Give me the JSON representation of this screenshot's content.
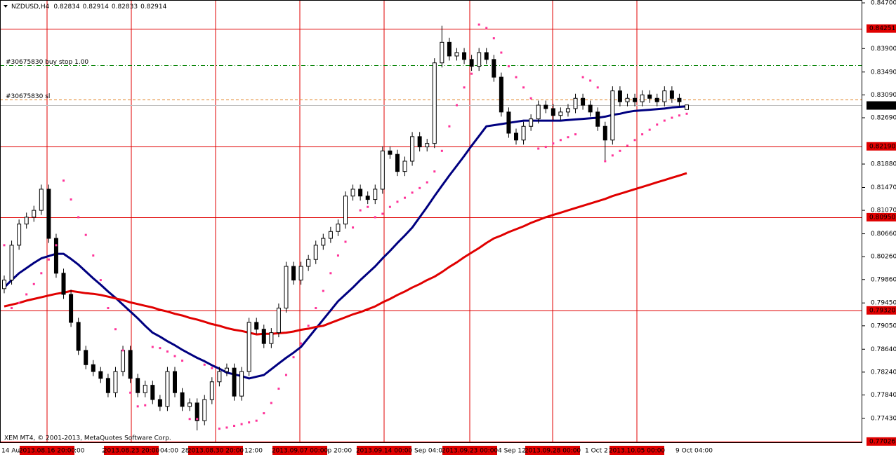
{
  "chart_data": {
    "type": "candlestick",
    "symbol": "NZDUSD,H4",
    "quote": [
      0.82834,
      0.82914,
      0.82833,
      0.82914
    ],
    "footer": "XEM MT4, © 2001-2013, MetaQuotes Software Corp.",
    "ylim": [
      0.77,
      0.8475
    ],
    "yticks": [
      {
        "value": 0.847,
        "label": "0.84700"
      },
      {
        "value": 0.839,
        "label": "0.83900"
      },
      {
        "value": 0.8349,
        "label": "0.83490"
      },
      {
        "value": 0.8309,
        "label": "0.83090"
      },
      {
        "value": 0.8269,
        "label": "0.82690"
      },
      {
        "value": 0.8188,
        "label": "0.81880"
      },
      {
        "value": 0.8147,
        "label": "0.81470"
      },
      {
        "value": 0.8107,
        "label": "0.81070"
      },
      {
        "value": 0.8066,
        "label": "0.80660"
      },
      {
        "value": 0.8026,
        "label": "0.80260"
      },
      {
        "value": 0.7986,
        "label": "0.79860"
      },
      {
        "value": 0.7945,
        "label": "0.79450"
      },
      {
        "value": 0.7905,
        "label": "0.79050"
      },
      {
        "value": 0.7864,
        "label": "0.78640"
      },
      {
        "value": 0.7824,
        "label": "0.78240"
      },
      {
        "value": 0.7784,
        "label": "0.77840"
      },
      {
        "value": 0.7743,
        "label": "0.77430"
      }
    ],
    "levels": [
      0.84251,
      {
        "value": 0.8219,
        "label": "0.82190"
      },
      {
        "value": 0.8095,
        "label": "0.80950"
      },
      {
        "value": 0.7932,
        "label": "0.79320"
      },
      0.77026
    ],
    "level_color": "#e00000",
    "current_price": 0.82914,
    "orders": [
      {
        "label": "#30675830 buy stop 1.00",
        "value": 0.8361,
        "color": "#008000"
      },
      {
        "label": "#30675830 sl",
        "value": 0.8301,
        "color": "#e08020"
      }
    ],
    "separators": [
      "2013.08.16 20:00",
      "2013.08.23 20:00",
      "2013.08.30 20:00",
      "2013.09.07 00:00",
      "2013.09.14 00:00",
      "2013.09.23 00:00",
      "2013.09.28 00:00",
      "2013.10.05 00:00"
    ],
    "time_labels": [
      "14 Au",
      ":00",
      "21 A",
      "04:00",
      "28",
      "12:00",
      "ep 20:00",
      "Sep 04:00",
      "4 Sep 12",
      "1 Oct 2",
      "9 Oct 04:00"
    ],
    "open": [
      0.797,
      0.7985,
      0.8046,
      0.8083,
      0.8095,
      0.8107,
      0.8144,
      0.8058,
      0.7997,
      0.796,
      0.7911,
      0.7862,
      0.7837,
      0.7825,
      0.7813,
      0.7788,
      0.7825,
      0.7862,
      0.7813,
      0.7788,
      0.7801,
      0.7776,
      0.7764,
      0.7825,
      0.7788,
      0.7764,
      0.777,
      0.7739,
      0.7776,
      0.7807,
      0.7825,
      0.7831,
      0.7782,
      0.7825,
      0.7911,
      0.7899,
      0.7874,
      0.7893,
      0.7936,
      0.8009,
      0.7985,
      0.8009,
      0.8021,
      0.8046,
      0.8058,
      0.807,
      0.8083,
      0.8132,
      0.8144,
      0.8132,
      0.8126,
      0.8144,
      0.8211,
      0.8205,
      0.8175,
      0.8193,
      0.8236,
      0.8218,
      0.8224,
      0.8365,
      0.8401,
      0.8377,
      0.8383,
      0.8371,
      0.8359,
      0.8383,
      0.8371,
      0.834,
      0.8279,
      0.8242,
      0.823,
      0.8254,
      0.8267,
      0.8291,
      0.8285,
      0.8273,
      0.8279,
      0.8285,
      0.8303,
      0.8291,
      0.8279,
      0.8254,
      0.823,
      0.8316,
      0.8297,
      0.8303,
      0.8297,
      0.8309,
      0.8303,
      0.8297,
      0.8316,
      0.8303,
      0.82834
    ],
    "high": [
      0.7993,
      0.8054,
      0.8091,
      0.8103,
      0.8115,
      0.8152,
      0.8152,
      0.8066,
      0.8005,
      0.7968,
      0.7919,
      0.787,
      0.7845,
      0.7833,
      0.7821,
      0.7833,
      0.787,
      0.787,
      0.7821,
      0.7809,
      0.7809,
      0.7784,
      0.7833,
      0.7833,
      0.7796,
      0.7778,
      0.7778,
      0.7784,
      0.7815,
      0.7833,
      0.7839,
      0.7839,
      0.7833,
      0.7919,
      0.7919,
      0.7907,
      0.7901,
      0.7944,
      0.8017,
      0.8017,
      0.8017,
      0.8029,
      0.8054,
      0.8066,
      0.8078,
      0.8091,
      0.814,
      0.8152,
      0.8152,
      0.814,
      0.8152,
      0.8219,
      0.8219,
      0.8213,
      0.8201,
      0.8244,
      0.8244,
      0.8232,
      0.8373,
      0.843,
      0.8409,
      0.8391,
      0.8391,
      0.8379,
      0.8391,
      0.8391,
      0.8379,
      0.8348,
      0.8287,
      0.825,
      0.8262,
      0.8275,
      0.8299,
      0.8299,
      0.8293,
      0.8287,
      0.8293,
      0.8311,
      0.8311,
      0.8299,
      0.8287,
      0.8262,
      0.8324,
      0.8324,
      0.8311,
      0.8311,
      0.8317,
      0.8317,
      0.8311,
      0.8324,
      0.8324,
      0.8311,
      0.82914
    ],
    "low": [
      0.7962,
      0.7977,
      0.8038,
      0.8075,
      0.8087,
      0.8099,
      0.805,
      0.7989,
      0.7952,
      0.7903,
      0.7854,
      0.7829,
      0.7817,
      0.7805,
      0.778,
      0.778,
      0.7817,
      0.7805,
      0.778,
      0.778,
      0.7768,
      0.7756,
      0.7756,
      0.778,
      0.7756,
      0.7756,
      0.7722,
      0.7731,
      0.7768,
      0.7799,
      0.7817,
      0.7774,
      0.7774,
      0.7817,
      0.7891,
      0.7866,
      0.7866,
      0.7885,
      0.7928,
      0.7977,
      0.7977,
      0.8001,
      0.8013,
      0.8038,
      0.805,
      0.8062,
      0.8075,
      0.8124,
      0.8124,
      0.8118,
      0.8118,
      0.8136,
      0.8197,
      0.8167,
      0.8167,
      0.8185,
      0.821,
      0.821,
      0.8216,
      0.8357,
      0.8369,
      0.8369,
      0.8363,
      0.8351,
      0.8351,
      0.8363,
      0.8332,
      0.8271,
      0.8234,
      0.8222,
      0.8222,
      0.8246,
      0.8259,
      0.8277,
      0.8265,
      0.8265,
      0.8271,
      0.8277,
      0.8283,
      0.8271,
      0.8246,
      0.8195,
      0.8222,
      0.8289,
      0.8289,
      0.8289,
      0.8289,
      0.8295,
      0.8289,
      0.8289,
      0.8295,
      0.8289,
      0.82833
    ],
    "close": [
      0.7985,
      0.8046,
      0.8083,
      0.8095,
      0.8107,
      0.8144,
      0.8058,
      0.7997,
      0.796,
      0.7911,
      0.7862,
      0.7837,
      0.7825,
      0.7813,
      0.7788,
      0.7825,
      0.7862,
      0.7813,
      0.7788,
      0.7801,
      0.7776,
      0.7764,
      0.7825,
      0.7788,
      0.7764,
      0.777,
      0.7739,
      0.7776,
      0.7807,
      0.7825,
      0.7831,
      0.7782,
      0.7825,
      0.7911,
      0.7899,
      0.7874,
      0.7893,
      0.7936,
      0.8009,
      0.7985,
      0.8009,
      0.8021,
      0.8046,
      0.8058,
      0.807,
      0.8083,
      0.8132,
      0.8144,
      0.8132,
      0.8126,
      0.8144,
      0.8211,
      0.8205,
      0.8175,
      0.8193,
      0.8236,
      0.8218,
      0.8224,
      0.8365,
      0.8401,
      0.8377,
      0.8383,
      0.8371,
      0.8359,
      0.8383,
      0.8371,
      0.834,
      0.8279,
      0.8242,
      0.823,
      0.8254,
      0.8267,
      0.8291,
      0.8285,
      0.8273,
      0.8279,
      0.8285,
      0.8303,
      0.8291,
      0.8279,
      0.8254,
      0.823,
      0.8316,
      0.8297,
      0.8303,
      0.8297,
      0.8309,
      0.8303,
      0.8297,
      0.8316,
      0.8303,
      0.8297,
      0.82914
    ],
    "ma": [
      {
        "color": "#000080",
        "values": [
          0.7972,
          0.7985,
          0.7997,
          0.8006,
          0.8015,
          0.8023,
          0.8027,
          0.8031,
          0.8031,
          0.8022,
          0.8012,
          0.8,
          0.7988,
          0.7977,
          0.7965,
          0.7954,
          0.7942,
          0.793,
          0.7918,
          0.7905,
          0.7893,
          0.7886,
          0.7878,
          0.7871,
          0.7863,
          0.7856,
          0.7849,
          0.7843,
          0.7836,
          0.783,
          0.7823,
          0.782,
          0.7817,
          0.7813,
          0.7816,
          0.7819,
          0.7829,
          0.7839,
          0.7849,
          0.7858,
          0.7868,
          0.7884,
          0.79,
          0.7916,
          0.7932,
          0.7948,
          0.796,
          0.7972,
          0.7985,
          0.7997,
          0.8009,
          0.8023,
          0.8036,
          0.805,
          0.8063,
          0.8077,
          0.8095,
          0.8113,
          0.8132,
          0.815,
          0.8168,
          0.8185,
          0.8202,
          0.822,
          0.8237,
          0.8254,
          0.8256,
          0.8258,
          0.826,
          0.8262,
          0.8264,
          0.8264,
          0.8264,
          0.8264,
          0.8264,
          0.8264,
          0.8265,
          0.8266,
          0.8267,
          0.8268,
          0.8269,
          0.8271,
          0.8274,
          0.8276,
          0.8279,
          0.8281,
          0.8282,
          0.8283,
          0.8284,
          0.8285,
          0.8287,
          0.8288,
          0.8289
        ]
      },
      {
        "color": "#e00000",
        "values": [
          0.7939,
          0.7942,
          0.7945,
          0.7949,
          0.7952,
          0.7955,
          0.7958,
          0.7961,
          0.7963,
          0.7966,
          0.7964,
          0.7962,
          0.7961,
          0.7959,
          0.7956,
          0.7953,
          0.795,
          0.7946,
          0.7943,
          0.794,
          0.7937,
          0.7933,
          0.793,
          0.7926,
          0.7923,
          0.7919,
          0.7916,
          0.7912,
          0.7908,
          0.7905,
          0.7901,
          0.7898,
          0.7896,
          0.7893,
          0.789,
          0.7891,
          0.7891,
          0.7892,
          0.7893,
          0.7895,
          0.7898,
          0.79,
          0.7903,
          0.7905,
          0.791,
          0.7915,
          0.792,
          0.7925,
          0.7929,
          0.7934,
          0.7939,
          0.7946,
          0.7952,
          0.7959,
          0.7965,
          0.7972,
          0.7978,
          0.7985,
          0.7991,
          0.7999,
          0.8008,
          0.8016,
          0.8025,
          0.8033,
          0.8041,
          0.805,
          0.8058,
          0.8063,
          0.8069,
          0.8074,
          0.8079,
          0.8085,
          0.809,
          0.8095,
          0.8099,
          0.8103,
          0.8107,
          0.8111,
          0.8115,
          0.8119,
          0.8123,
          0.8127,
          0.8132,
          0.8136,
          0.814,
          0.8144,
          0.8148,
          0.8152,
          0.8156,
          0.816,
          0.8164,
          0.8168,
          0.8172
        ]
      }
    ],
    "sar": {
      "color": "#ff3399",
      "values": [
        0.8046,
        0.7936,
        0.7945,
        0.796,
        0.7978,
        0.7997,
        0.8021,
        0.8046,
        0.8159,
        0.8126,
        0.8095,
        0.8064,
        0.8028,
        0.7985,
        0.7936,
        0.7899,
        0.7862,
        0.7788,
        0.7764,
        0.7766,
        0.7868,
        0.7866,
        0.786,
        0.7852,
        0.7844,
        0.7742,
        0.7742,
        0.7837,
        0.7831,
        0.7725,
        0.7727,
        0.773,
        0.7733,
        0.7736,
        0.7739,
        0.7752,
        0.777,
        0.7795,
        0.7819,
        0.785,
        0.7874,
        0.7905,
        0.7936,
        0.7966,
        0.7997,
        0.8028,
        0.8052,
        0.8077,
        0.8107,
        0.8113,
        0.8095,
        0.8101,
        0.8113,
        0.8122,
        0.8129,
        0.8138,
        0.8146,
        0.8156,
        0.8175,
        0.8211,
        0.8254,
        0.8291,
        0.8322,
        0.8346,
        0.8432,
        0.8426,
        0.8408,
        0.8383,
        0.8359,
        0.834,
        0.8322,
        0.8303,
        0.8215,
        0.8218,
        0.8224,
        0.823,
        0.8235,
        0.824,
        0.834,
        0.8334,
        0.8322,
        0.8193,
        0.8203,
        0.8211,
        0.822,
        0.823,
        0.824,
        0.8248,
        0.8257,
        0.8264,
        0.8269,
        0.8273,
        0.8276
      ]
    }
  }
}
